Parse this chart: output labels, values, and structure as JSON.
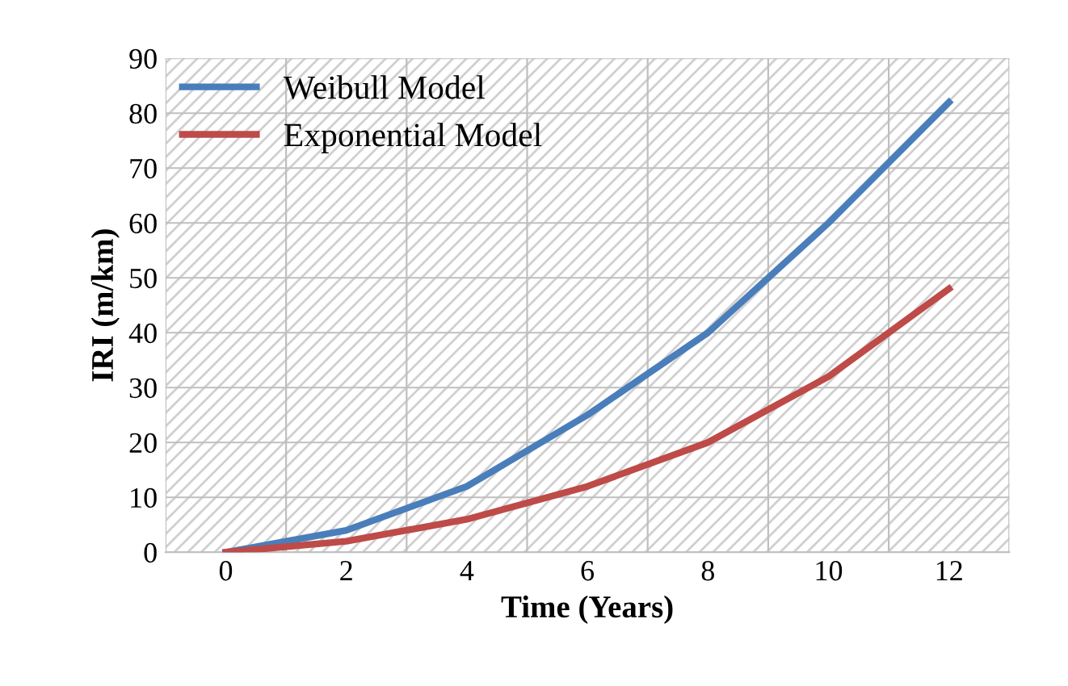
{
  "chart_data": {
    "type": "line",
    "xlabel": "Time (Years)",
    "ylabel": "IRI (m/km)",
    "categories": [
      "0",
      "2",
      "4",
      "6",
      "8",
      "10",
      "12"
    ],
    "series": [
      {
        "name": "Weibull Model",
        "color": "#4a7ebb",
        "values": [
          0,
          4,
          12,
          25,
          40,
          60,
          82
        ]
      },
      {
        "name": "Exponential Model",
        "color": "#be4b48",
        "values": [
          0,
          2,
          6,
          12,
          20,
          32,
          48
        ]
      }
    ],
    "ylim": [
      0,
      90
    ],
    "yticks": [
      0,
      10,
      20,
      30,
      40,
      50,
      60,
      70,
      80,
      90
    ],
    "grid": true,
    "legend": "top left",
    "marker": "none",
    "line_style": "solid"
  }
}
